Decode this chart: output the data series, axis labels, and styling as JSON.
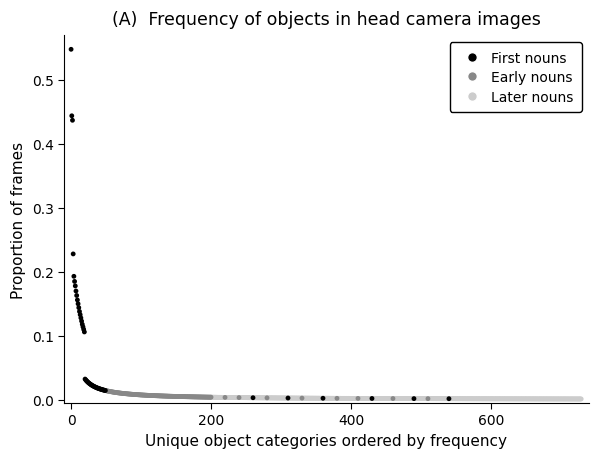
{
  "title": "(A)  Frequency of objects in head camera images",
  "xlabel": "Unique object categories ordered by frequency",
  "ylabel": "Proportion of frames",
  "xlim": [
    -10,
    740
  ],
  "ylim": [
    -0.005,
    0.57
  ],
  "yticks": [
    0.0,
    0.1,
    0.2,
    0.3,
    0.4,
    0.5
  ],
  "xticks": [
    0,
    200,
    400,
    600
  ],
  "first_nouns_color": "#000000",
  "early_nouns_color": "#888888",
  "later_nouns_color": "#cccccc",
  "dot_size": 12,
  "n_total": 730,
  "n_first": 50,
  "n_early": 150,
  "legend_labels": [
    "First nouns",
    "Early nouns",
    "Later nouns"
  ],
  "key_values": [
    0.548,
    0.444,
    0.437,
    0.228,
    0.193,
    0.185,
    0.178,
    0.17,
    0.163,
    0.156,
    0.15,
    0.144,
    0.138,
    0.133,
    0.128,
    0.123,
    0.118,
    0.114,
    0.11,
    0.106
  ]
}
